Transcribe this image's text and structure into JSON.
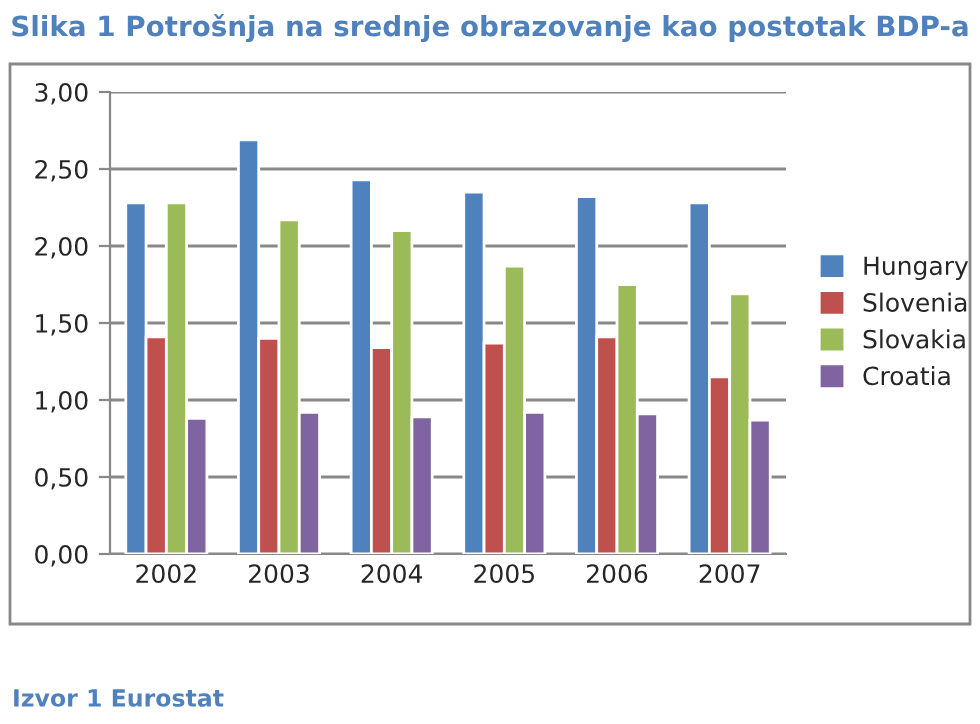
{
  "chart_data": {
    "type": "bar",
    "title": "Slika 1 Potrošnja na srednje obrazovanje kao postotak BDP-a",
    "categories": [
      "2002",
      "2003",
      "2004",
      "2005",
      "2006",
      "2007"
    ],
    "series": [
      {
        "name": "Hungary",
        "color": "#4f81bd",
        "values": [
          2.28,
          2.69,
          2.43,
          2.35,
          2.32,
          2.28
        ]
      },
      {
        "name": "Slovenia",
        "color": "#c0504d",
        "values": [
          1.41,
          1.4,
          1.34,
          1.37,
          1.41,
          1.15
        ]
      },
      {
        "name": "Slovakia",
        "color": "#9bbb59",
        "values": [
          2.28,
          2.17,
          2.1,
          1.87,
          1.75,
          1.69
        ]
      },
      {
        "name": "Croatia",
        "color": "#8064a2",
        "values": [
          0.88,
          0.92,
          0.89,
          0.92,
          0.91,
          0.87
        ]
      }
    ],
    "ylim": [
      0,
      3
    ],
    "yticks": [
      {
        "value": 0,
        "label": "0,00"
      },
      {
        "value": 0.5,
        "label": "0,50"
      },
      {
        "value": 1,
        "label": "1,00"
      },
      {
        "value": 1.5,
        "label": "1,50"
      },
      {
        "value": 2,
        "label": "2,00"
      },
      {
        "value": 2.5,
        "label": "2,50"
      },
      {
        "value": 3,
        "label": "3,00"
      }
    ],
    "grid": "y",
    "legend": "right",
    "annotations": [
      "Izvor 1 Eurostat"
    ]
  }
}
